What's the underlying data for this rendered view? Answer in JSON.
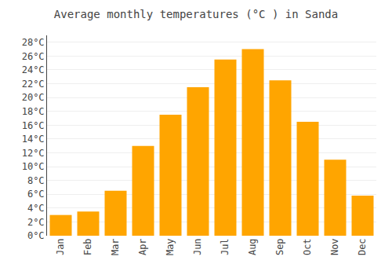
{
  "chart_data": {
    "type": "bar",
    "title": "Average monthly temperatures (°C ) in Sanda",
    "categories": [
      "Jan",
      "Feb",
      "Mar",
      "Apr",
      "May",
      "Jun",
      "Jul",
      "Aug",
      "Sep",
      "Oct",
      "Nov",
      "Dec"
    ],
    "values": [
      3.0,
      3.5,
      6.5,
      13.0,
      17.5,
      21.5,
      25.5,
      27.0,
      22.5,
      16.5,
      11.0,
      5.8
    ],
    "color": "#FFA500",
    "ylim": [
      0,
      29
    ],
    "yticks": [
      {
        "value": 0,
        "label": "0°C"
      },
      {
        "value": 2,
        "label": "2°C"
      },
      {
        "value": 4,
        "label": "4°C"
      },
      {
        "value": 6,
        "label": "6°C"
      },
      {
        "value": 8,
        "label": "8°C"
      },
      {
        "value": 10,
        "label": "10°C"
      },
      {
        "value": 12,
        "label": "12°C"
      },
      {
        "value": 14,
        "label": "14°C"
      },
      {
        "value": 16,
        "label": "16°C"
      },
      {
        "value": 18,
        "label": "18°C"
      },
      {
        "value": 20,
        "label": "20°C"
      },
      {
        "value": 22,
        "label": "22°C"
      },
      {
        "value": 24,
        "label": "24°C"
      },
      {
        "value": 26,
        "label": "26°C"
      },
      {
        "value": 28,
        "label": "28°C"
      }
    ],
    "grid": true
  }
}
